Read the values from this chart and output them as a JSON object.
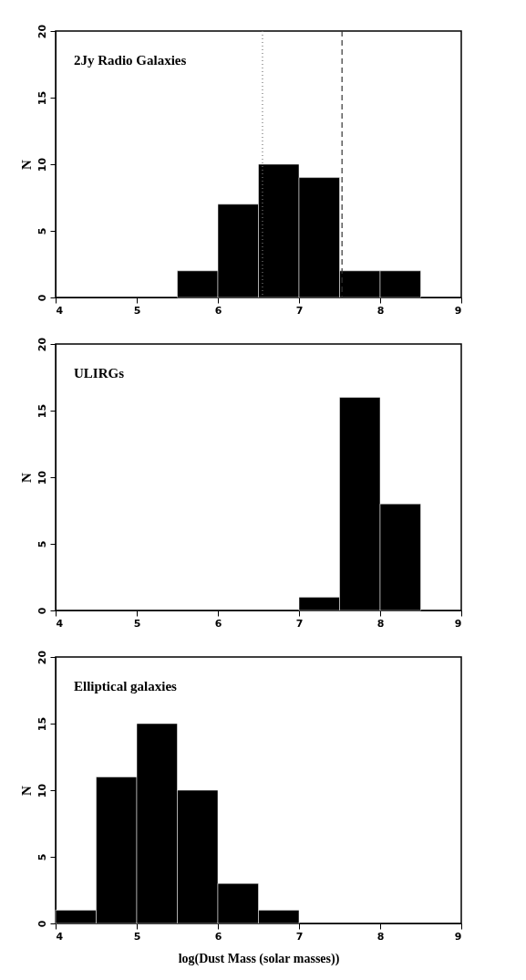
{
  "chart_data": [
    {
      "type": "histogram",
      "title": "2Jy Radio Galaxies",
      "ylabel": "N",
      "bins": [
        5.5,
        6,
        6.5,
        7,
        7.5,
        8,
        8.5
      ],
      "values": [
        2,
        7,
        10,
        9,
        2,
        2
      ],
      "color": "#000000",
      "xlim": [
        4,
        9
      ],
      "xticks": [
        4,
        5,
        6,
        7,
        8,
        9
      ],
      "ylim": [
        0,
        20
      ],
      "yticks": [
        0,
        5,
        10,
        15,
        20
      ],
      "grid": false,
      "ref_lines": [
        {
          "axis": "x",
          "value": 6.55,
          "line_style": "dotted",
          "color": "#777777"
        },
        {
          "axis": "x",
          "value": 7.53,
          "line_style": "dashed",
          "color": "#333333"
        }
      ]
    },
    {
      "type": "histogram",
      "title": "ULIRGs",
      "ylabel": "N",
      "bins": [
        7,
        7.5,
        8,
        8.5
      ],
      "values": [
        1,
        16,
        8
      ],
      "color": "#000000",
      "xlim": [
        4,
        9
      ],
      "xticks": [
        4,
        5,
        6,
        7,
        8,
        9
      ],
      "ylim": [
        0,
        20
      ],
      "yticks": [
        0,
        5,
        10,
        15,
        20
      ],
      "grid": false
    },
    {
      "type": "histogram",
      "title": "Elliptical galaxies",
      "ylabel": "N",
      "xlabel": "log(Dust Mass (solar masses))",
      "bins": [
        4,
        4.5,
        5,
        5.5,
        6,
        6.5,
        7
      ],
      "values": [
        1,
        11,
        15,
        10,
        3,
        1
      ],
      "color": "#000000",
      "xlim": [
        4,
        9
      ],
      "xticks": [
        4,
        5,
        6,
        7,
        8,
        9
      ],
      "ylim": [
        0,
        20
      ],
      "yticks": [
        0,
        5,
        10,
        15,
        20
      ],
      "grid": false
    }
  ]
}
